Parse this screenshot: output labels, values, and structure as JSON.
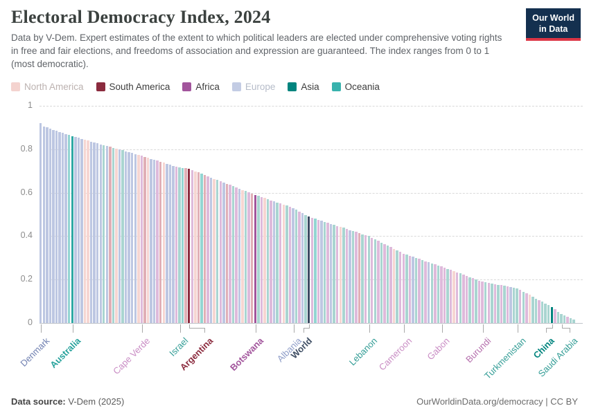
{
  "header": {
    "title": "Electoral Democracy Index, 2024",
    "subtitle": "Data by V-Dem. Expert estimates of the extent to which political leaders are elected under comprehensive voting rights in free and fair elections, and freedoms of association and expression are guaranteed. The index ranges from 0 to 1 (most democratic).",
    "logo": {
      "line1": "Our World",
      "line2": "in Data",
      "bg": "#14304f",
      "strip": "#dc3545"
    }
  },
  "legend": {
    "items": [
      {
        "label": "North America",
        "swatch": "#f4d3cf",
        "text_color": "#bcb2b0",
        "muted": true
      },
      {
        "label": "South America",
        "swatch": "#8b2b3e",
        "text_color": "#3d3d3d",
        "muted": false
      },
      {
        "label": "Africa",
        "swatch": "#a2559c",
        "text_color": "#3d3d3d",
        "muted": false
      },
      {
        "label": "Europe",
        "swatch": "#c3cce4",
        "text_color": "#b6bcc9",
        "muted": true
      },
      {
        "label": "Asia",
        "swatch": "#00847e",
        "text_color": "#3d3d3d",
        "muted": false
      },
      {
        "label": "Oceania",
        "swatch": "#38b2ad",
        "text_color": "#3d3d3d",
        "muted": false
      }
    ]
  },
  "chart_data": {
    "type": "bar",
    "title": "Electoral Democracy Index, 2024",
    "xlabel": "",
    "ylabel": "",
    "ylim": [
      0,
      1
    ],
    "yticks": [
      0,
      0.2,
      0.4,
      0.6,
      0.8,
      1
    ],
    "grid": "horizontal-dashed",
    "legend_position": "top",
    "continents": {
      "E": "Europe",
      "N": "North America",
      "S": "South America",
      "F": "Africa",
      "A": "Asia",
      "O": "Oceania",
      "W": "World"
    },
    "faded_colors": {
      "E": "#bdc7e2",
      "N": "#f6d6d2",
      "S": "#e0afb6",
      "F": "#debadb",
      "A": "#a9d5d1",
      "O": "#93d5d2",
      "W": "#9aa3b2"
    },
    "highlight_colors": {
      "E": "#4c6a9c",
      "N": "#d9705c",
      "S": "#8b2b3e",
      "F": "#a2559c",
      "A": "#00847e",
      "O": "#2fa9a4",
      "W": "#3d4b63"
    },
    "bars": [
      [
        0.92,
        "E"
      ],
      [
        0.905,
        "E"
      ],
      [
        0.9,
        "E"
      ],
      [
        0.895,
        "E"
      ],
      [
        0.89,
        "E"
      ],
      [
        0.885,
        "E"
      ],
      [
        0.88,
        "E"
      ],
      [
        0.875,
        "E"
      ],
      [
        0.87,
        "E"
      ],
      [
        0.865,
        "O"
      ],
      [
        0.86,
        "O",
        1
      ],
      [
        0.856,
        "E"
      ],
      [
        0.852,
        "E"
      ],
      [
        0.848,
        "E"
      ],
      [
        0.844,
        "N"
      ],
      [
        0.84,
        "N"
      ],
      [
        0.835,
        "E"
      ],
      [
        0.831,
        "E"
      ],
      [
        0.827,
        "E"
      ],
      [
        0.823,
        "E"
      ],
      [
        0.819,
        "A"
      ],
      [
        0.815,
        "E"
      ],
      [
        0.811,
        "S"
      ],
      [
        0.807,
        "A"
      ],
      [
        0.803,
        "N"
      ],
      [
        0.799,
        "E"
      ],
      [
        0.795,
        "A"
      ],
      [
        0.791,
        "E"
      ],
      [
        0.786,
        "E"
      ],
      [
        0.782,
        "E"
      ],
      [
        0.778,
        "E"
      ],
      [
        0.774,
        "N"
      ],
      [
        0.77,
        "F"
      ],
      [
        0.765,
        "S"
      ],
      [
        0.761,
        "N"
      ],
      [
        0.756,
        "E"
      ],
      [
        0.752,
        "E"
      ],
      [
        0.747,
        "F"
      ],
      [
        0.742,
        "S"
      ],
      [
        0.738,
        "N"
      ],
      [
        0.733,
        "E"
      ],
      [
        0.729,
        "E"
      ],
      [
        0.724,
        "E"
      ],
      [
        0.72,
        "F"
      ],
      [
        0.715,
        "A"
      ],
      [
        0.713,
        "O"
      ],
      [
        0.712,
        "S"
      ],
      [
        0.71,
        "S",
        1
      ],
      [
        0.704,
        "F"
      ],
      [
        0.699,
        "N"
      ],
      [
        0.693,
        "S"
      ],
      [
        0.687,
        "O"
      ],
      [
        0.681,
        "S"
      ],
      [
        0.676,
        "F"
      ],
      [
        0.67,
        "E"
      ],
      [
        0.664,
        "N"
      ],
      [
        0.659,
        "A"
      ],
      [
        0.653,
        "F"
      ],
      [
        0.647,
        "E"
      ],
      [
        0.641,
        "S"
      ],
      [
        0.636,
        "F"
      ],
      [
        0.63,
        "A"
      ],
      [
        0.624,
        "F"
      ],
      [
        0.619,
        "E"
      ],
      [
        0.613,
        "N"
      ],
      [
        0.607,
        "A"
      ],
      [
        0.601,
        "F"
      ],
      [
        0.596,
        "S"
      ],
      [
        0.59,
        "F",
        1
      ],
      [
        0.585,
        "A"
      ],
      [
        0.58,
        "F"
      ],
      [
        0.575,
        "N"
      ],
      [
        0.57,
        "A"
      ],
      [
        0.565,
        "F"
      ],
      [
        0.56,
        "E"
      ],
      [
        0.555,
        "A"
      ],
      [
        0.55,
        "F"
      ],
      [
        0.545,
        "N"
      ],
      [
        0.54,
        "A"
      ],
      [
        0.535,
        "F"
      ],
      [
        0.53,
        "E"
      ],
      [
        0.522,
        "A"
      ],
      [
        0.514,
        "F"
      ],
      [
        0.506,
        "E"
      ],
      [
        0.498,
        "A"
      ],
      [
        0.49,
        "W",
        1
      ],
      [
        0.485,
        "F"
      ],
      [
        0.481,
        "O"
      ],
      [
        0.476,
        "F"
      ],
      [
        0.471,
        "E"
      ],
      [
        0.466,
        "A"
      ],
      [
        0.462,
        "F"
      ],
      [
        0.457,
        "E"
      ],
      [
        0.452,
        "A"
      ],
      [
        0.447,
        "F"
      ],
      [
        0.443,
        "N"
      ],
      [
        0.438,
        "A"
      ],
      [
        0.433,
        "F"
      ],
      [
        0.428,
        "E"
      ],
      [
        0.424,
        "A"
      ],
      [
        0.419,
        "F"
      ],
      [
        0.414,
        "S"
      ],
      [
        0.409,
        "A"
      ],
      [
        0.405,
        "F"
      ],
      [
        0.4,
        "A"
      ],
      [
        0.393,
        "F"
      ],
      [
        0.385,
        "A"
      ],
      [
        0.378,
        "F"
      ],
      [
        0.371,
        "A"
      ],
      [
        0.364,
        "F"
      ],
      [
        0.356,
        "A"
      ],
      [
        0.349,
        "F"
      ],
      [
        0.342,
        "N"
      ],
      [
        0.335,
        "A"
      ],
      [
        0.327,
        "F"
      ],
      [
        0.32,
        "F"
      ],
      [
        0.315,
        "A"
      ],
      [
        0.31,
        "F"
      ],
      [
        0.305,
        "E"
      ],
      [
        0.3,
        "A"
      ],
      [
        0.295,
        "F"
      ],
      [
        0.29,
        "A"
      ],
      [
        0.285,
        "F"
      ],
      [
        0.28,
        "E"
      ],
      [
        0.275,
        "A"
      ],
      [
        0.27,
        "F"
      ],
      [
        0.265,
        "A"
      ],
      [
        0.26,
        "F"
      ],
      [
        0.255,
        "F"
      ],
      [
        0.249,
        "A"
      ],
      [
        0.244,
        "F"
      ],
      [
        0.238,
        "N"
      ],
      [
        0.233,
        "F"
      ],
      [
        0.228,
        "A"
      ],
      [
        0.222,
        "F"
      ],
      [
        0.217,
        "F"
      ],
      [
        0.211,
        "A"
      ],
      [
        0.206,
        "F"
      ],
      [
        0.201,
        "A"
      ],
      [
        0.195,
        "F"
      ],
      [
        0.19,
        "F"
      ],
      [
        0.187,
        "A"
      ],
      [
        0.185,
        "F"
      ],
      [
        0.182,
        "A"
      ],
      [
        0.179,
        "F"
      ],
      [
        0.176,
        "A"
      ],
      [
        0.174,
        "F"
      ],
      [
        0.171,
        "A"
      ],
      [
        0.168,
        "F"
      ],
      [
        0.165,
        "E"
      ],
      [
        0.163,
        "A"
      ],
      [
        0.16,
        "A"
      ],
      [
        0.152,
        "F"
      ],
      [
        0.144,
        "A"
      ],
      [
        0.137,
        "F"
      ],
      [
        0.129,
        "N"
      ],
      [
        0.121,
        "A"
      ],
      [
        0.113,
        "A"
      ],
      [
        0.105,
        "F"
      ],
      [
        0.098,
        "A"
      ],
      [
        0.09,
        "A"
      ],
      [
        0.082,
        "A"
      ],
      [
        0.074,
        "A",
        1
      ],
      [
        0.063,
        "F"
      ],
      [
        0.051,
        "A"
      ],
      [
        0.04,
        "A"
      ],
      [
        0.034,
        "A"
      ],
      [
        0.028,
        "F"
      ],
      [
        0.021,
        "A"
      ],
      [
        0.015,
        "A"
      ]
    ],
    "labels": [
      {
        "index": 1,
        "name": "Denmark",
        "value": 0.92,
        "color": "#7080b1",
        "bold": false,
        "dx": 0
      },
      {
        "index": 11,
        "name": "Australia",
        "value": 0.86,
        "color": "#26a29c",
        "bold": true,
        "dx": 0
      },
      {
        "index": 33,
        "name": "Cape Verde",
        "value": 0.77,
        "color": "#c98cc4",
        "bold": false,
        "dx": 0
      },
      {
        "index": 45,
        "name": "Israel",
        "value": 0.715,
        "color": "#339d96",
        "bold": false,
        "dx": 0
      },
      {
        "index": 48,
        "name": "Argentina",
        "value": 0.71,
        "color": "#8b2b3e",
        "bold": true,
        "dx": 22
      },
      {
        "index": 69,
        "name": "Botswana",
        "value": 0.59,
        "color": "#a2559c",
        "bold": true,
        "dx": 0
      },
      {
        "index": 81,
        "name": "Albania",
        "value": 0.53,
        "color": "#8d9cc8",
        "bold": false,
        "dx": 0
      },
      {
        "index": 86,
        "name": "World",
        "value": 0.49,
        "color": "#3f4e64",
        "bold": true,
        "dx": -8
      },
      {
        "index": 105,
        "name": "Lebanon",
        "value": 0.4,
        "color": "#339d96",
        "bold": false,
        "dx": 0
      },
      {
        "index": 116,
        "name": "Cameroon",
        "value": 0.32,
        "color": "#c98cc4",
        "bold": false,
        "dx": 0
      },
      {
        "index": 128,
        "name": "Gabon",
        "value": 0.26,
        "color": "#c98cc4",
        "bold": false,
        "dx": 0
      },
      {
        "index": 141,
        "name": "Burundi",
        "value": 0.19,
        "color": "#b56fad",
        "bold": false,
        "dx": 0
      },
      {
        "index": 152,
        "name": "Turkmenistan",
        "value": 0.16,
        "color": "#339d96",
        "bold": false,
        "dx": 0
      },
      {
        "index": 163,
        "name": "China",
        "value": 0.074,
        "color": "#00847e",
        "bold": true,
        "dx": -9
      },
      {
        "index": 166,
        "name": "Saudi Arabia",
        "value": 0.04,
        "color": "#339d96",
        "bold": false,
        "dx": 11
      }
    ]
  },
  "footer": {
    "source_label": "Data source:",
    "source_value": " V-Dem (2025)",
    "right": "OurWorldinData.org/democracy | CC BY"
  }
}
